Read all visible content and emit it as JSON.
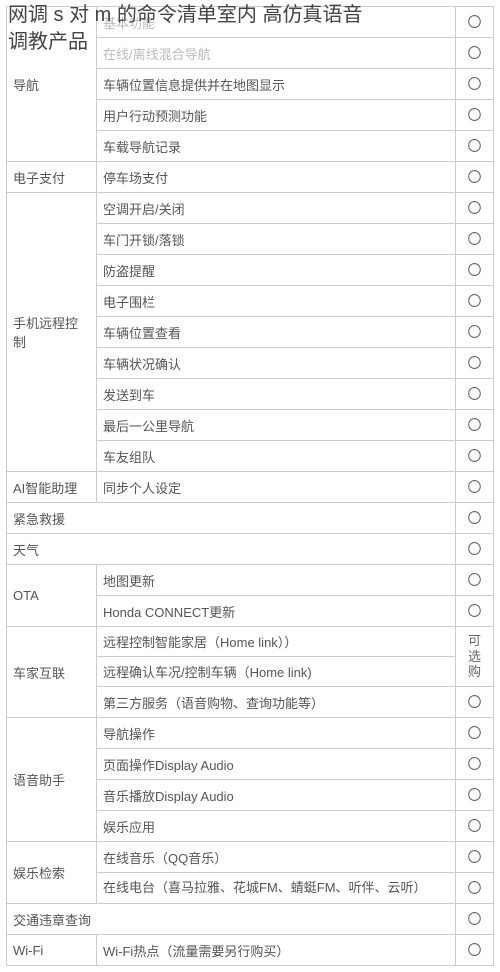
{
  "title_line1": "网调 s 对 m 的命令清单室内    高仿真语音",
  "title_line2": "调教产品",
  "circle": "〇",
  "circle_faded": "〇",
  "opt_label": "可选购",
  "sections": {
    "nav": {
      "cat": "导航",
      "rows": [
        {
          "feat": "基本功能",
          "faded": true
        },
        {
          "feat": "在线/离线混合导航",
          "faded": true
        },
        {
          "feat": "车辆位置信息提供并在地图显示"
        },
        {
          "feat": "用户行动预测功能"
        },
        {
          "feat": "车载导航记录"
        }
      ]
    },
    "epay": {
      "cat": "电子支付",
      "rows": [
        {
          "feat": "停车场支付"
        }
      ]
    },
    "remote": {
      "cat": "手机远程控制",
      "rows": [
        {
          "feat": "空调开启/关闭"
        },
        {
          "feat": "车门开锁/落锁"
        },
        {
          "feat": "防盗提醒"
        },
        {
          "feat": "电子围栏"
        },
        {
          "feat": "车辆位置查看"
        },
        {
          "feat": "车辆状况确认"
        },
        {
          "feat": "发送到车"
        },
        {
          "feat": "最后一公里导航"
        },
        {
          "feat": "车友组队"
        }
      ]
    },
    "ai": {
      "cat": "AI智能助理",
      "rows": [
        {
          "feat": "同步个人设定"
        }
      ]
    },
    "emergency": {
      "cat": "紧急救援"
    },
    "weather": {
      "cat": "天气"
    },
    "ota": {
      "cat": "OTA",
      "rows": [
        {
          "feat": "地图更新"
        },
        {
          "feat": "Honda CONNECT更新"
        }
      ]
    },
    "homelink": {
      "cat": "车家互联",
      "rows": [
        {
          "feat": "远程控制智能家居（Home link））"
        },
        {
          "feat": "远程确认车况/控制车辆（Home link)"
        },
        {
          "feat": "第三方服务（语音购物、查询功能等）"
        }
      ]
    },
    "voice": {
      "cat": "语音助手",
      "rows": [
        {
          "feat": "导航操作"
        },
        {
          "feat": "页面操作Display Audio"
        },
        {
          "feat": "音乐播放Display Audio"
        },
        {
          "feat": "娱乐应用"
        }
      ]
    },
    "ent": {
      "cat": "娱乐检索",
      "rows": [
        {
          "feat": "在线音乐（QQ音乐）"
        },
        {
          "feat": "在线电台（喜马拉雅、花城FM、蜻蜓FM、听伴、云听）"
        }
      ]
    },
    "traffic": {
      "cat": "交通违章查询"
    },
    "wifi": {
      "cat": "Wi-Fi",
      "rows": [
        {
          "feat": "Wi-Fi热点（流量需要另行购买）"
        }
      ]
    }
  }
}
